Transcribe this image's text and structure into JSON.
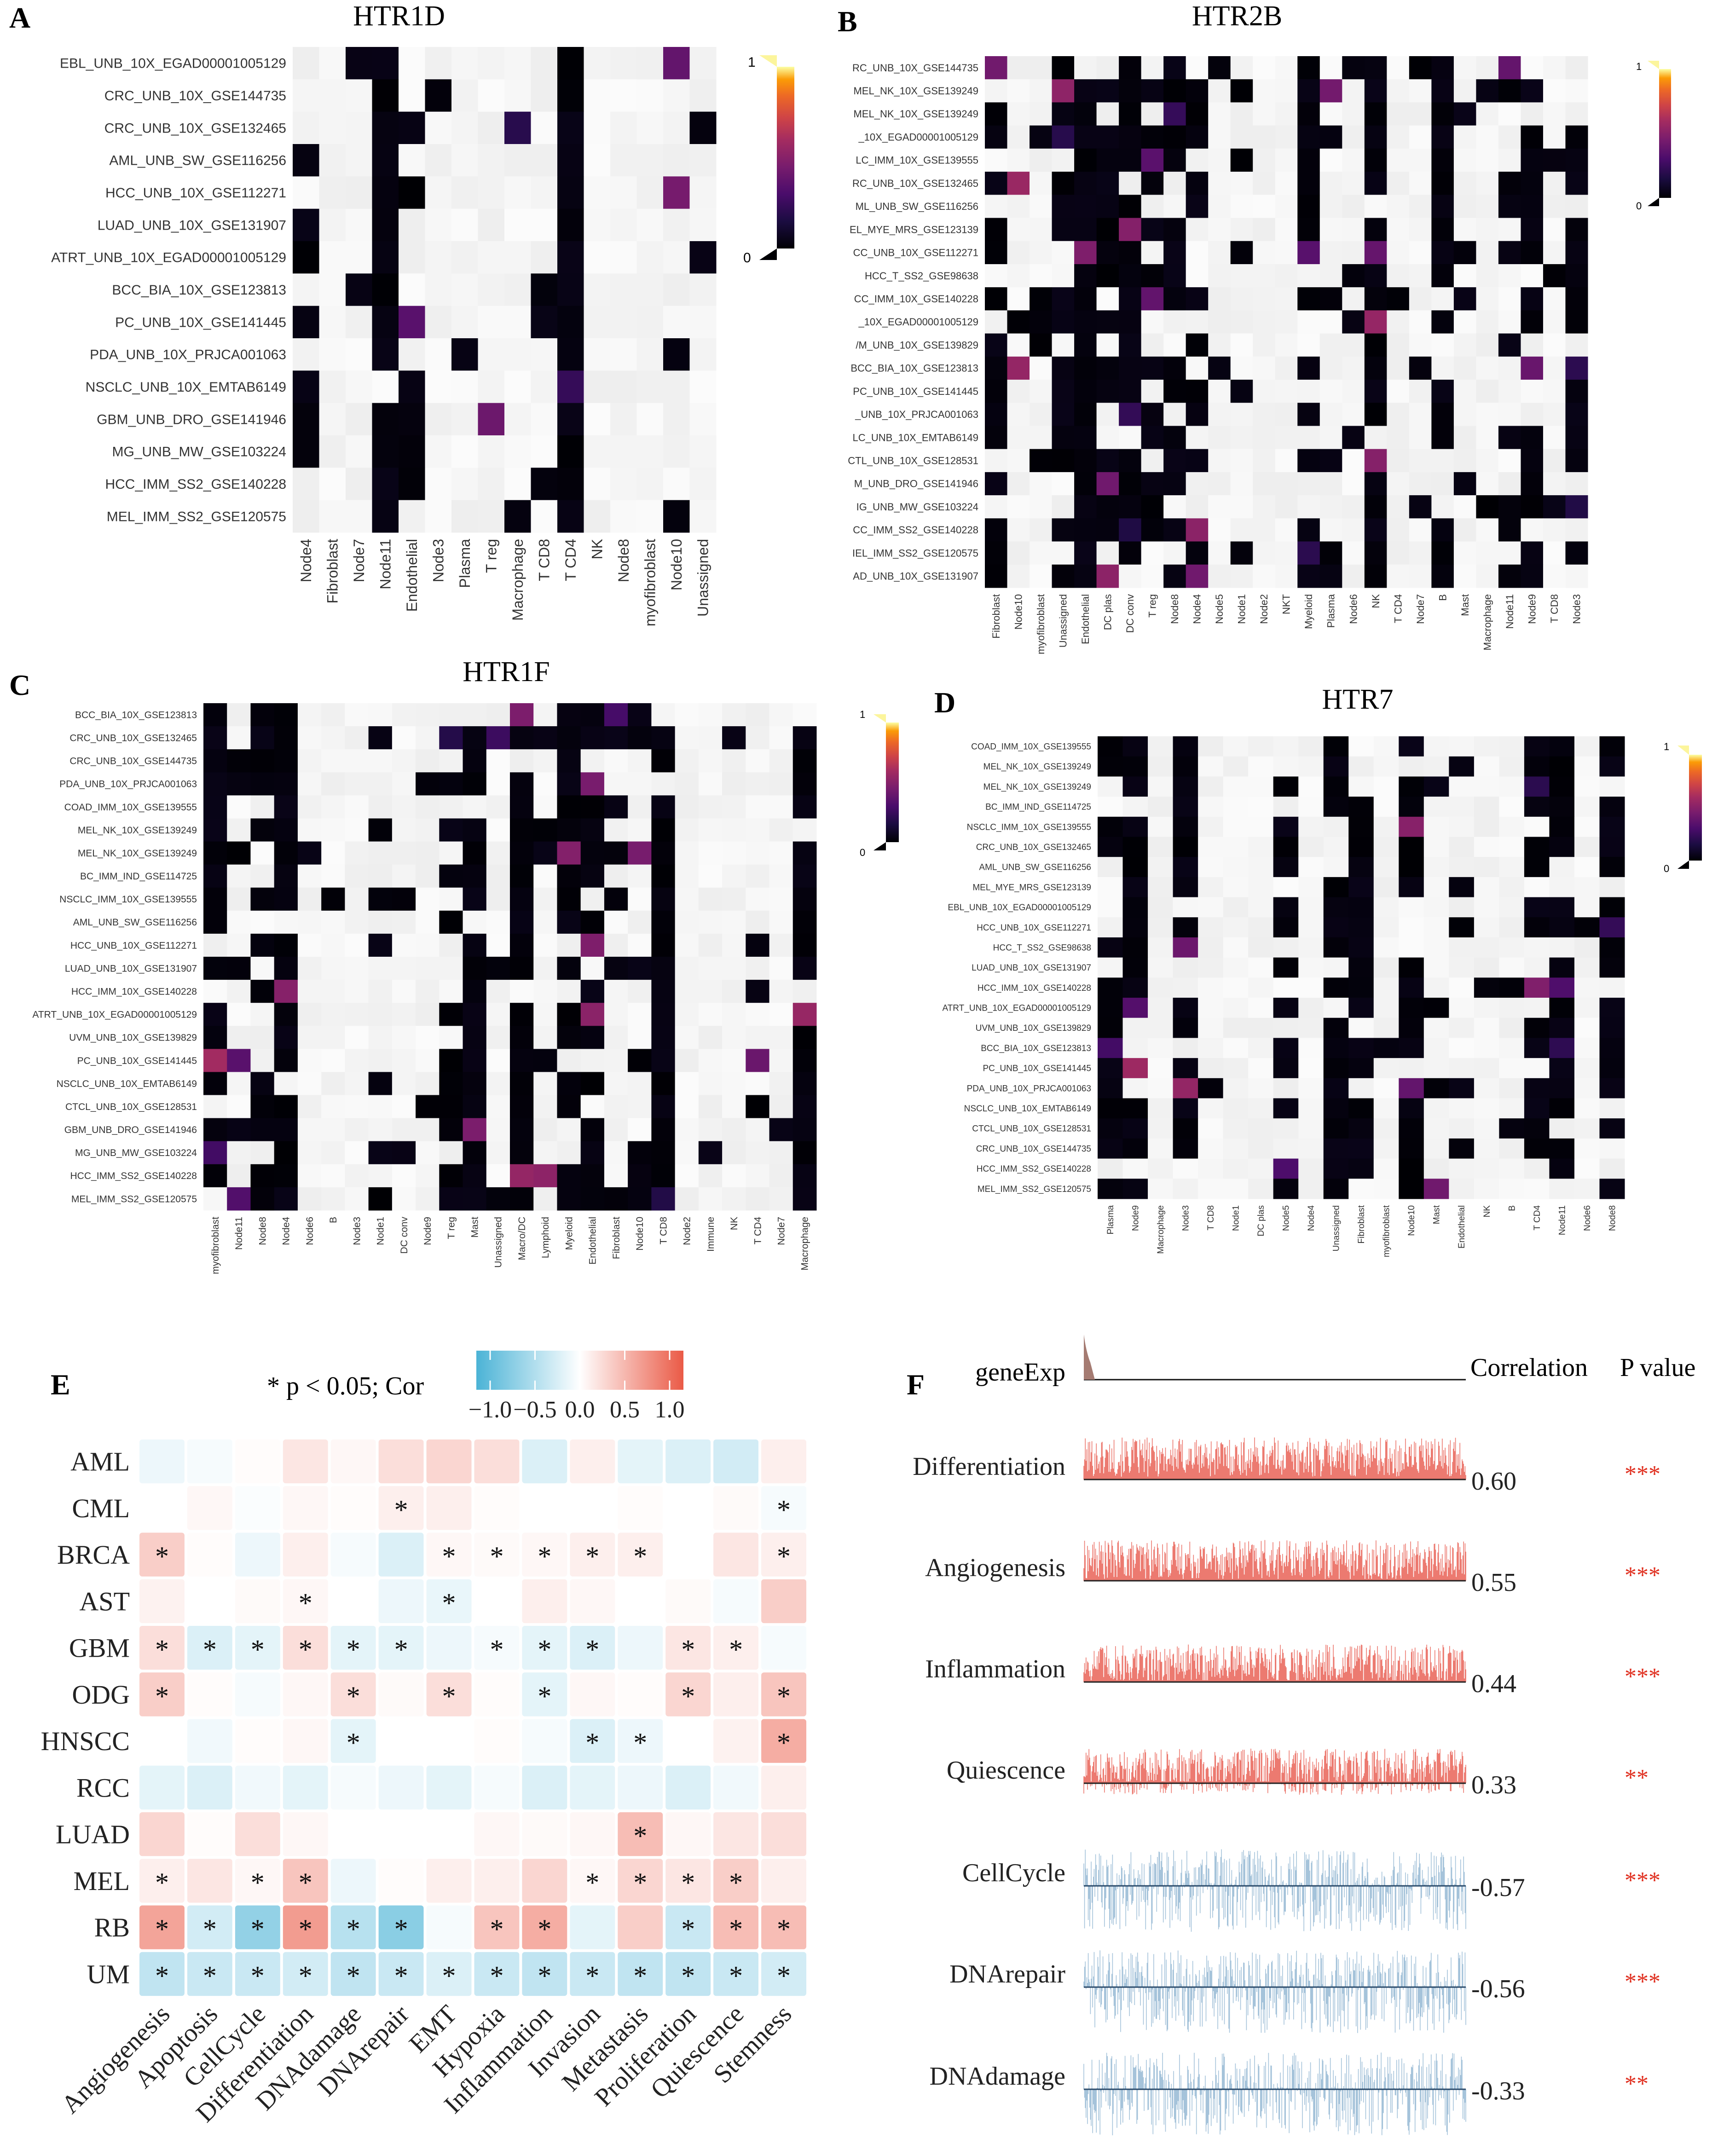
{
  "panel_labels": [
    "A",
    "B",
    "C",
    "D",
    "E",
    "F"
  ],
  "chart_data": [
    {
      "panel": "A",
      "type": "heatmap",
      "title": "HTR1D",
      "rows": [
        "EBL_UNB_10X_EGAD00001005129",
        "CRC_UNB_10X_GSE144735",
        "CRC_UNB_10X_GSE132465",
        "AML_UNB_SW_GSE116256",
        "HCC_UNB_10X_GSE112271",
        "LUAD_UNB_10X_GSE131907",
        "ATRT_UNB_10X_EGAD00001005129",
        "BCC_BIA_10X_GSE123813",
        "PC_UNB_10X_GSE141445",
        "PDA_UNB_10X_PRJCA001063",
        "NSCLC_UNB_10X_EMTAB6149",
        "GBM_UNB_DRO_GSE141946",
        "MG_UNB_MW_GSE103224",
        "HCC_IMM_SS2_GSE140228",
        "MEL_IMM_SS2_GSE120575"
      ],
      "cols": [
        "Node4",
        "Fibroblast",
        "Node7",
        "Node11",
        "Endothelial",
        "Node3",
        "Plasma",
        "T reg",
        "Macrophage",
        "T CD8",
        "T CD4",
        "NK",
        "Node8",
        "myofibroblast",
        "Node10",
        "Unassigned"
      ],
      "scale": {
        "min": "0",
        "max": "1"
      }
    },
    {
      "panel": "B",
      "type": "heatmap",
      "title": "HTR2B",
      "rows": [
        "RC_UNB_10X_GSE144735",
        "MEL_NK_10X_GSE139249",
        "MEL_NK_10X_GSE139249",
        "_10X_EGAD00001005129",
        "LC_IMM_10X_GSE139555",
        "RC_UNB_10X_GSE132465",
        "ML_UNB_SW_GSE116256",
        "EL_MYE_MRS_GSE123139",
        "CC_UNB_10X_GSE112271",
        "HCC_T_SS2_GSE98638",
        "CC_IMM_10X_GSE140228",
        "_10X_EGAD00001005129",
        "/M_UNB_10X_GSE139829",
        "BCC_BIA_10X_GSE123813",
        "PC_UNB_10X_GSE141445",
        "_UNB_10X_PRJCA001063",
        "LC_UNB_10X_EMTAB6149",
        "CTL_UNB_10X_GSE128531",
        "M_UNB_DRO_GSE141946",
        "IG_UNB_MW_GSE103224",
        "CC_IMM_SS2_GSE140228",
        "IEL_IMM_SS2_GSE120575",
        "AD_UNB_10X_GSE131907"
      ],
      "cols": [
        "Fibroblast",
        "Node10",
        "myofibroblast",
        "Unassigned",
        "Endothelial",
        "DC plas",
        "DC conv",
        "T reg",
        "Node8",
        "Node4",
        "Node5",
        "Node1",
        "Node2",
        "NKT",
        "Myeloid",
        "Plasma",
        "Node6",
        "NK",
        "T CD4",
        "Node7",
        "B",
        "Mast",
        "Macrophage",
        "Node11",
        "Node9",
        "T CD8",
        "Node3"
      ],
      "scale": {
        "min": "0",
        "max": "1"
      }
    },
    {
      "panel": "C",
      "type": "heatmap",
      "title": "HTR1F",
      "rows": [
        "BCC_BIA_10X_GSE123813",
        "CRC_UNB_10X_GSE132465",
        "CRC_UNB_10X_GSE144735",
        "PDA_UNB_10X_PRJCA001063",
        "COAD_IMM_10X_GSE139555",
        "MEL_NK_10X_GSE139249",
        "MEL_NK_10X_GSE139249",
        "BC_IMM_IND_GSE114725",
        "NSCLC_IMM_10X_GSE139555",
        "AML_UNB_SW_GSE116256",
        "HCC_UNB_10X_GSE112271",
        "LUAD_UNB_10X_GSE131907",
        "HCC_IMM_10X_GSE140228",
        "ATRT_UNB_10X_EGAD00001005129",
        "UVM_UNB_10X_GSE139829",
        "PC_UNB_10X_GSE141445",
        "NSCLC_UNB_10X_EMTAB6149",
        "CTCL_UNB_10X_GSE128531",
        "GBM_UNB_DRO_GSE141946",
        "MG_UNB_MW_GSE103224",
        "HCC_IMM_SS2_GSE140228",
        "MEL_IMM_SS2_GSE120575"
      ],
      "cols": [
        "myofibroblast",
        "Node11",
        "Node8",
        "Node4",
        "Node6",
        "B",
        "Node3",
        "Node1",
        "DC conv",
        "Node9",
        "T reg",
        "Mast",
        "Unassigned",
        "Macro/DC",
        "Lymphoid",
        "Myeloid",
        "Endothelial",
        "Fibroblast",
        "Node10",
        "T CD8",
        "Node2",
        "Immune",
        "NK",
        "T CD4",
        "Node7",
        "Macrophage"
      ],
      "scale": {
        "min": "0",
        "max": "1"
      }
    },
    {
      "panel": "D",
      "type": "heatmap",
      "title": "HTR7",
      "rows": [
        "COAD_IMM_10X_GSE139555",
        "MEL_NK_10X_GSE139249",
        "MEL_NK_10X_GSE139249",
        "BC_IMM_IND_GSE114725",
        "NSCLC_IMM_10X_GSE139555",
        "CRC_UNB_10X_GSE132465",
        "AML_UNB_SW_GSE116256",
        "MEL_MYE_MRS_GSE123139",
        "EBL_UNB_10X_EGAD00001005129",
        "HCC_UNB_10X_GSE112271",
        "HCC_T_SS2_GSE98638",
        "LUAD_UNB_10X_GSE131907",
        "HCC_IMM_10X_GSE140228",
        "ATRT_UNB_10X_EGAD00001005129",
        "UVM_UNB_10X_GSE139829",
        "BCC_BIA_10X_GSE123813",
        "PC_UNB_10X_GSE141445",
        "PDA_UNB_10X_PRJCA001063",
        "NSCLC_UNB_10X_EMTAB6149",
        "CTCL_UNB_10X_GSE128531",
        "CRC_UNB_10X_GSE144735",
        "HCC_IMM_SS2_GSE140228",
        "MEL_IMM_SS2_GSE120575"
      ],
      "cols": [
        "Plasma",
        "Node9",
        "Macrophage",
        "Node3",
        "T CD8",
        "Node1",
        "DC plas",
        "Node5",
        "Node4",
        "Unassigned",
        "Fibroblast",
        "myofibroblast",
        "Node10",
        "Mast",
        "Endothelial",
        "NK",
        "B",
        "T CD4",
        "Node11",
        "Node6",
        "Node8"
      ],
      "scale": {
        "min": "0",
        "max": "1"
      }
    },
    {
      "panel": "E",
      "type": "heatmap",
      "legend_title": "* p < 0.05; Cor",
      "legend_ticks": [
        "−1.0",
        "−0.5",
        "0.0",
        "0.5",
        "1.0"
      ],
      "colors": {
        "negative": "#4bb3d6",
        "zero": "#ffffff",
        "positive": "#ea5a46"
      },
      "rows": [
        "AML",
        "CML",
        "BRCA",
        "AST",
        "GBM",
        "ODG",
        "HNSCC",
        "RCC",
        "LUAD",
        "MEL",
        "RB",
        "UM"
      ],
      "cols": [
        "Angiogenesis",
        "Apoptosis",
        "CellCycle",
        "Differentiation",
        "DNAdamage",
        "DNArepair",
        "EMT",
        "Hypoxia",
        "Inflammation",
        "Invasion",
        "Metastasis",
        "Proliferation",
        "Quiescence",
        "Stemness"
      ],
      "values": [
        [
          -0.1,
          -0.05,
          0.02,
          0.15,
          0.05,
          0.2,
          0.25,
          0.2,
          -0.2,
          0.1,
          -0.15,
          -0.2,
          -0.25,
          0.1
        ],
        [
          0.0,
          0.05,
          -0.03,
          0.05,
          0.02,
          0.1,
          0.1,
          0.02,
          0.0,
          0.0,
          0.02,
          0.0,
          0.03,
          -0.05
        ],
        [
          0.3,
          0.02,
          -0.1,
          0.1,
          -0.05,
          -0.2,
          0.05,
          0.03,
          0.05,
          0.1,
          0.1,
          0.0,
          0.15,
          0.1
        ],
        [
          0.08,
          0.0,
          0.03,
          0.05,
          0.0,
          -0.1,
          -0.12,
          0.0,
          0.1,
          0.05,
          0.0,
          0.03,
          -0.05,
          0.3
        ],
        [
          0.2,
          -0.2,
          -0.15,
          0.2,
          -0.15,
          -0.15,
          -0.1,
          -0.05,
          -0.15,
          -0.2,
          -0.1,
          0.15,
          0.1,
          -0.05
        ],
        [
          0.3,
          0.02,
          -0.05,
          0.05,
          0.2,
          0.03,
          0.2,
          0.02,
          -0.15,
          0.05,
          0.02,
          0.25,
          0.1,
          0.35
        ],
        [
          0.0,
          -0.08,
          0.02,
          0.05,
          -0.15,
          0.0,
          0.0,
          0.02,
          -0.05,
          -0.2,
          -0.1,
          0.0,
          0.08,
          0.5
        ],
        [
          -0.15,
          -0.2,
          -0.08,
          -0.15,
          -0.05,
          -0.1,
          -0.15,
          -0.05,
          -0.2,
          -0.15,
          -0.1,
          -0.2,
          -0.08,
          0.1
        ],
        [
          0.25,
          0.02,
          0.2,
          0.05,
          0.0,
          0.0,
          0.0,
          0.05,
          0.03,
          0.05,
          0.4,
          0.05,
          0.15,
          0.2
        ],
        [
          0.1,
          0.15,
          0.05,
          0.35,
          -0.1,
          0.02,
          0.1,
          0.1,
          0.25,
          0.05,
          0.25,
          0.15,
          0.3,
          0.1
        ],
        [
          0.55,
          -0.25,
          -0.6,
          0.6,
          -0.4,
          -0.65,
          -0.05,
          0.35,
          0.5,
          -0.15,
          0.3,
          -0.3,
          0.4,
          0.4
        ],
        [
          -0.35,
          -0.3,
          -0.3,
          -0.25,
          -0.35,
          -0.3,
          -0.2,
          -0.3,
          -0.35,
          -0.3,
          -0.35,
          -0.35,
          -0.3,
          -0.25
        ]
      ],
      "significant": [
        [],
        [
          5,
          13
        ],
        [
          0,
          6,
          7,
          8,
          9,
          10,
          13
        ],
        [
          3,
          6
        ],
        [
          0,
          1,
          2,
          3,
          4,
          5,
          7,
          8,
          9,
          11,
          12
        ],
        [
          0,
          4,
          6,
          8,
          11,
          13
        ],
        [
          4,
          9,
          10,
          13
        ],
        [],
        [
          10
        ],
        [
          0,
          2,
          3,
          9,
          10,
          11,
          12
        ],
        [
          0,
          1,
          2,
          3,
          4,
          5,
          7,
          8,
          11,
          12,
          13
        ],
        [
          0,
          1,
          2,
          3,
          4,
          5,
          6,
          7,
          8,
          9,
          10,
          11,
          12,
          13
        ]
      ],
      "star_label": "*"
    },
    {
      "panel": "F",
      "type": "table",
      "header": {
        "gene_row": "geneExp",
        "corr": "Correlation",
        "pval": "P value"
      },
      "rows": [
        {
          "name": "Differentiation",
          "correlation": "0.60",
          "p": "***"
        },
        {
          "name": "Angiogenesis",
          "correlation": "0.55",
          "p": "***"
        },
        {
          "name": "Inflammation",
          "correlation": "0.44",
          "p": "***"
        },
        {
          "name": "Quiescence",
          "correlation": "0.33",
          "p": "**"
        },
        {
          "name": "CellCycle",
          "correlation": "-0.57",
          "p": "***"
        },
        {
          "name": "DNArepair",
          "correlation": "-0.56",
          "p": "***"
        },
        {
          "name": "DNAdamage",
          "correlation": "-0.33",
          "p": "**"
        }
      ],
      "colors": {
        "positive": "#ea6b60",
        "negative": "#9bbcd6",
        "pvalue": "#e03020",
        "gene": "#a57b72"
      }
    }
  ]
}
